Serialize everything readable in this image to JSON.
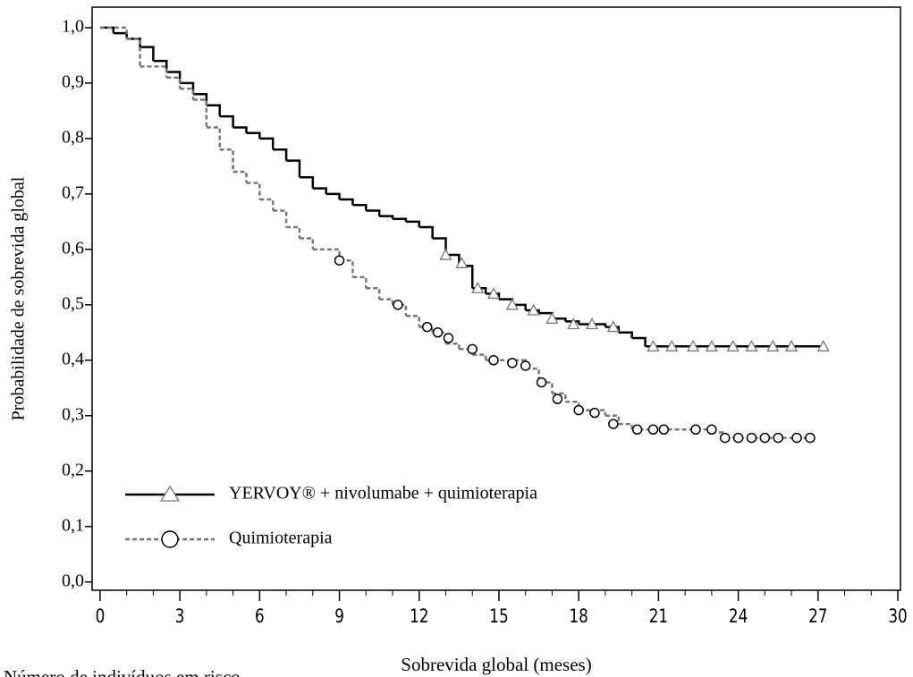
{
  "chart_data": {
    "type": "step",
    "x_label": "Sobrevida global (meses)",
    "y_label": "Probabilidade de sobrevida global",
    "annotation": "Número de indivíduos em risco",
    "xlim": [
      -0.3,
      30.1
    ],
    "ylim": [
      -0.015,
      1.037
    ],
    "xticks": [
      0,
      3,
      6,
      9,
      12,
      15,
      18,
      21,
      24,
      27,
      30
    ],
    "yticks": [
      {
        "value": 0,
        "label": "0,0"
      },
      {
        "value": 0.1,
        "label": "0,1"
      },
      {
        "value": 0.2,
        "label": "0,2"
      },
      {
        "value": 0.3,
        "label": "0,3"
      },
      {
        "value": 0.4,
        "label": "0,4"
      },
      {
        "value": 0.5,
        "label": "0,5"
      },
      {
        "value": 0.6,
        "label": "0,6"
      },
      {
        "value": 0.7,
        "label": "0,7"
      },
      {
        "value": 0.8,
        "label": "0,8"
      },
      {
        "value": 0.9,
        "label": "0,9"
      },
      {
        "value": 1,
        "label": "1,0"
      }
    ],
    "legend": "lower left",
    "series": [
      {
        "name": "YERVOY® + nivolumabe + quimioterapia",
        "color": "#000000",
        "dash": false,
        "marker": "triangle",
        "marker_color": "#777777",
        "x": [
          0,
          0.5,
          1,
          1.5,
          2,
          2.5,
          3,
          3.5,
          4,
          4.5,
          5,
          5.5,
          6,
          6.5,
          7,
          7.5,
          8,
          8.5,
          9,
          9.5,
          10,
          10.5,
          11,
          11.5,
          12,
          12.5,
          13,
          13.5,
          14,
          14.5,
          15,
          15.5,
          16,
          16.5,
          17,
          17.5,
          18,
          19,
          19.5,
          20,
          20.5,
          27.2
        ],
        "values": [
          1.0,
          0.99,
          0.98,
          0.965,
          0.94,
          0.92,
          0.9,
          0.88,
          0.86,
          0.84,
          0.82,
          0.81,
          0.8,
          0.78,
          0.76,
          0.73,
          0.71,
          0.7,
          0.69,
          0.68,
          0.67,
          0.66,
          0.655,
          0.65,
          0.64,
          0.62,
          0.59,
          0.57,
          0.53,
          0.52,
          0.51,
          0.5,
          0.49,
          0.485,
          0.475,
          0.47,
          0.465,
          0.46,
          0.45,
          0.44,
          0.425,
          0.425
        ],
        "censor_x": [
          13,
          13.6,
          14.2,
          14.8,
          15.5,
          16.3,
          17,
          17.8,
          18.5,
          19.3,
          20.8,
          21.5,
          22.3,
          23,
          23.8,
          24.5,
          25.3,
          26,
          27.2
        ],
        "censor_y": [
          0.59,
          0.575,
          0.53,
          0.52,
          0.5,
          0.49,
          0.475,
          0.465,
          0.465,
          0.46,
          0.425,
          0.425,
          0.425,
          0.425,
          0.425,
          0.425,
          0.425,
          0.425,
          0.425
        ]
      },
      {
        "name": "Quimioterapia",
        "color": "#777777",
        "dash": true,
        "marker": "circle",
        "marker_color": "#000000",
        "x": [
          0,
          1,
          1.5,
          2.5,
          3,
          3.5,
          4,
          4.5,
          5,
          5.5,
          6,
          6.5,
          7,
          7.5,
          8,
          9,
          9.5,
          10,
          10.5,
          11,
          11.5,
          12,
          12.5,
          13,
          13.5,
          14,
          14.5,
          16,
          16.5,
          17,
          17.5,
          18,
          19,
          19.5,
          20,
          23,
          23.5,
          26.8
        ],
        "values": [
          1.0,
          0.98,
          0.93,
          0.91,
          0.89,
          0.87,
          0.82,
          0.78,
          0.74,
          0.72,
          0.69,
          0.67,
          0.64,
          0.62,
          0.6,
          0.58,
          0.55,
          0.53,
          0.51,
          0.5,
          0.48,
          0.46,
          0.45,
          0.43,
          0.42,
          0.41,
          0.4,
          0.385,
          0.36,
          0.34,
          0.325,
          0.31,
          0.3,
          0.285,
          0.275,
          0.27,
          0.26,
          0.26
        ],
        "censor_x": [
          9,
          11.2,
          12.3,
          12.7,
          13.1,
          14,
          14.8,
          15.5,
          16,
          16.6,
          17.2,
          18,
          18.6,
          19.3,
          20.2,
          20.8,
          21.2,
          22.4,
          23,
          23.5,
          24,
          24.5,
          25,
          25.5,
          26.2,
          26.7
        ],
        "censor_y": [
          0.58,
          0.5,
          0.46,
          0.45,
          0.44,
          0.42,
          0.4,
          0.395,
          0.39,
          0.36,
          0.33,
          0.31,
          0.305,
          0.285,
          0.275,
          0.275,
          0.275,
          0.275,
          0.275,
          0.26,
          0.26,
          0.26,
          0.26,
          0.26,
          0.26,
          0.26
        ]
      }
    ]
  }
}
